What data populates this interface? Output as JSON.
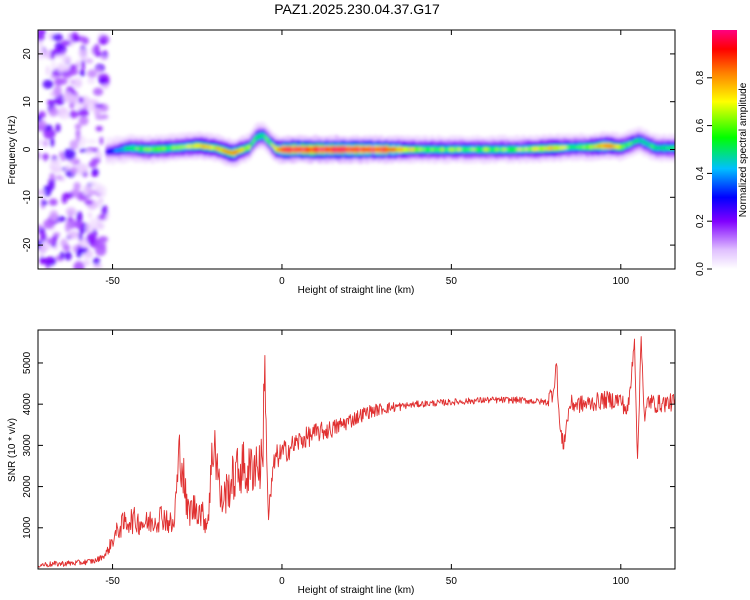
{
  "figure_title": "PAZ1.2025.230.04.37.G17",
  "chart_data": [
    {
      "type": "heatmap",
      "description_key": "spectrogram",
      "xlabel": "Height of straight line (km)",
      "ylabel": "Frequency (Hz)",
      "xlim": [
        -72,
        116
      ],
      "ylim": [
        -25,
        25
      ],
      "x_ticks": [
        -50,
        0,
        50,
        100
      ],
      "y_ticks": [
        -20,
        -10,
        0,
        10,
        20
      ],
      "colorbar": {
        "label": "Normalized spectral amplitude",
        "range": [
          0,
          1
        ],
        "ticks": [
          0.0,
          0.2,
          0.4,
          0.6,
          0.8
        ],
        "tick_labels": [
          "0.0",
          "0.2",
          "0.4",
          "0.6",
          "0.8"
        ],
        "colormap": [
          "#ffffff",
          "#e8c8ff",
          "#8000ff",
          "#0000ff",
          "#00c0ff",
          "#00ff00",
          "#ffff00",
          "#ff8000",
          "#ff0000",
          "#ff0080"
        ]
      },
      "ridge": {
        "x": [
          -52,
          -45,
          -40,
          -35,
          -30,
          -25,
          -20,
          -15,
          -10,
          -8,
          -6,
          -4,
          -2,
          0,
          10,
          20,
          30,
          40,
          50,
          60,
          70,
          80,
          85,
          90,
          95,
          100,
          105,
          110,
          116
        ],
        "freq": [
          -0.5,
          0.3,
          0.0,
          0.2,
          0.5,
          0.8,
          0.3,
          -0.8,
          0.5,
          2.5,
          3.0,
          1.5,
          0.0,
          0.0,
          0.0,
          0.0,
          0.0,
          0.0,
          0.0,
          0.0,
          0.0,
          0.3,
          0.5,
          0.5,
          0.8,
          0.5,
          2.0,
          0.3,
          0.3
        ],
        "amplitude": [
          0.3,
          0.55,
          0.6,
          0.6,
          0.6,
          0.7,
          0.65,
          0.8,
          0.6,
          0.55,
          0.55,
          0.55,
          0.7,
          0.95,
          0.97,
          0.95,
          0.9,
          0.6,
          0.6,
          0.6,
          0.6,
          0.7,
          0.55,
          0.6,
          0.8,
          0.6,
          0.5,
          0.55,
          0.55
        ]
      },
      "noise_region_x": [
        -72,
        -52
      ]
    },
    {
      "type": "line",
      "xlabel": "Height of straight line (km)",
      "ylabel": "SNR (10 * v/v)",
      "xlim": [
        -72,
        116
      ],
      "ylim": [
        0,
        5800
      ],
      "x_ticks": [
        -50,
        0,
        50,
        100
      ],
      "y_ticks": [
        1000,
        2000,
        3000,
        4000,
        5000
      ],
      "series": [
        {
          "color": "#e03030",
          "x": [
            -72,
            -60,
            -55,
            -52,
            -50,
            -48,
            -45,
            -40,
            -35,
            -32,
            -30,
            -28,
            -25,
            -22,
            -20,
            -18,
            -15,
            -12,
            -10,
            -8,
            -6,
            -5,
            -4,
            -3,
            -2,
            0,
            5,
            10,
            15,
            20,
            25,
            30,
            35,
            40,
            50,
            60,
            70,
            78,
            80,
            81,
            82,
            83,
            85,
            90,
            95,
            100,
            102,
            103,
            104,
            105,
            106,
            107,
            108,
            110,
            116
          ],
          "y": [
            100,
            150,
            200,
            350,
            700,
            1000,
            1200,
            1100,
            1300,
            1000,
            3000,
            1400,
            1500,
            1100,
            3300,
            1600,
            2100,
            2500,
            2300,
            2600,
            2500,
            4550,
            1200,
            2100,
            2700,
            2800,
            3100,
            3300,
            3400,
            3600,
            3800,
            3900,
            3950,
            4000,
            4050,
            4100,
            4100,
            4050,
            4300,
            5000,
            3400,
            3000,
            4000,
            4000,
            4100,
            4100,
            3800,
            4500,
            5700,
            2500,
            5800,
            3500,
            4100,
            4000,
            4050
          ]
        }
      ]
    }
  ]
}
